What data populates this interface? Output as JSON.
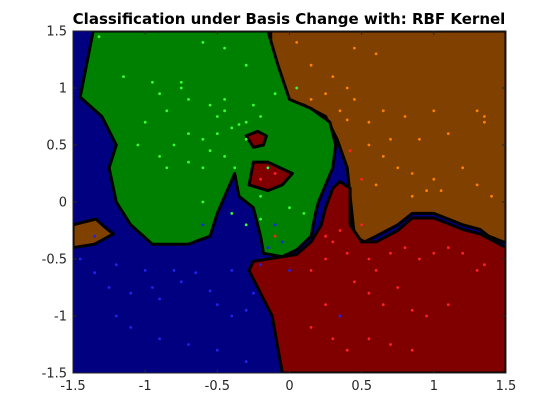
{
  "chart_data": {
    "type": "scatter",
    "title": "Classification under Basis Change with: RBF Kernel",
    "xlabel": "",
    "ylabel": "",
    "xlim": [
      -1.5,
      1.5
    ],
    "ylim": [
      -1.5,
      1.5
    ],
    "x_ticks": [
      "-1.5",
      "-1",
      "-0.5",
      "0",
      "0.5",
      "1",
      "1.5"
    ],
    "y_ticks": [
      "-1.5",
      "-1",
      "-0.5",
      "0",
      "0.5",
      "1",
      "1.5"
    ],
    "grid": false,
    "colors": {
      "class_green": "#008000",
      "class_blue": "#000080",
      "class_red": "#800000",
      "class_orange": "#804000",
      "boundary": "#000000",
      "point_green": "#33ff33",
      "point_blue": "#2222ee",
      "point_red": "#ff2222",
      "point_orange": "#ff8000"
    },
    "regions": [
      {
        "class": "orange",
        "polygon": [
          [
            -0.13,
            1.5
          ],
          [
            1.5,
            1.5
          ],
          [
            1.5,
            -0.36
          ],
          [
            1.38,
            -0.3
          ],
          [
            1.32,
            -0.24
          ],
          [
            1.2,
            -0.2
          ],
          [
            1.0,
            -0.1
          ],
          [
            0.85,
            -0.1
          ],
          [
            0.75,
            -0.2
          ],
          [
            0.6,
            -0.3
          ],
          [
            0.52,
            -0.35
          ],
          [
            0.45,
            -0.3
          ],
          [
            0.42,
            0.05
          ],
          [
            0.4,
            0.3
          ],
          [
            0.33,
            0.55
          ],
          [
            0.25,
            0.75
          ],
          [
            0.1,
            0.85
          ],
          [
            0.0,
            0.88
          ],
          [
            -0.08,
            1.1
          ],
          [
            -0.13,
            1.35
          ]
        ]
      },
      {
        "class": "orange",
        "polygon": [
          [
            -1.5,
            -0.2
          ],
          [
            -1.34,
            -0.15
          ],
          [
            -1.28,
            -0.22
          ],
          [
            -1.22,
            -0.28
          ],
          [
            -1.35,
            -0.37
          ],
          [
            -1.5,
            -0.4
          ]
        ]
      },
      {
        "class": "green",
        "polygon": [
          [
            -1.36,
            1.5
          ],
          [
            -0.15,
            1.5
          ],
          [
            -0.08,
            1.2
          ],
          [
            0.0,
            0.9
          ],
          [
            0.15,
            0.82
          ],
          [
            0.28,
            0.7
          ],
          [
            0.32,
            0.5
          ],
          [
            0.3,
            0.3
          ],
          [
            0.25,
            0.15
          ],
          [
            0.2,
            0.0
          ],
          [
            0.18,
            -0.1
          ],
          [
            0.15,
            -0.3
          ],
          [
            0.05,
            -0.42
          ],
          [
            -0.05,
            -0.48
          ],
          [
            -0.18,
            -0.45
          ],
          [
            -0.2,
            -0.3
          ],
          [
            -0.25,
            -0.05
          ],
          [
            -0.35,
            0.05
          ],
          [
            -0.38,
            0.25
          ],
          [
            -0.5,
            -0.1
          ],
          [
            -0.55,
            -0.3
          ],
          [
            -0.7,
            -0.37
          ],
          [
            -0.95,
            -0.37
          ],
          [
            -1.1,
            -0.2
          ],
          [
            -1.2,
            0.0
          ],
          [
            -1.25,
            0.3
          ],
          [
            -1.2,
            0.5
          ],
          [
            -1.3,
            0.75
          ],
          [
            -1.45,
            0.92
          ]
        ]
      },
      {
        "class": "red",
        "polygon": [
          [
            -0.25,
            0.35
          ],
          [
            -0.15,
            0.35
          ],
          [
            0.02,
            0.25
          ],
          [
            -0.05,
            0.15
          ],
          [
            -0.15,
            0.1
          ],
          [
            -0.28,
            0.15
          ]
        ]
      },
      {
        "class": "red",
        "polygon": [
          [
            0.35,
            0.18
          ],
          [
            0.42,
            0.12
          ],
          [
            0.42,
            -0.2
          ],
          [
            0.5,
            -0.35
          ],
          [
            0.6,
            -0.35
          ],
          [
            0.75,
            -0.25
          ],
          [
            0.85,
            -0.14
          ],
          [
            1.0,
            -0.14
          ],
          [
            1.2,
            -0.24
          ],
          [
            1.32,
            -0.28
          ],
          [
            1.5,
            -0.4
          ],
          [
            1.5,
            -1.5
          ],
          [
            -0.05,
            -1.5
          ],
          [
            -0.12,
            -1.0
          ],
          [
            -0.22,
            -0.75
          ],
          [
            -0.28,
            -0.6
          ],
          [
            -0.25,
            -0.52
          ],
          [
            -0.15,
            -0.5
          ],
          [
            0.05,
            -0.46
          ],
          [
            0.15,
            -0.35
          ],
          [
            0.22,
            -0.2
          ],
          [
            0.25,
            -0.05
          ],
          [
            0.3,
            0.12
          ]
        ]
      },
      {
        "class": "red",
        "polygon": [
          [
            -0.3,
            0.58
          ],
          [
            -0.22,
            0.62
          ],
          [
            -0.16,
            0.58
          ],
          [
            -0.18,
            0.5
          ],
          [
            -0.25,
            0.48
          ]
        ]
      }
    ],
    "series": [
      {
        "class": "green",
        "points": [
          [
            -1.32,
            1.45
          ],
          [
            -0.6,
            1.4
          ],
          [
            -0.45,
            1.35
          ],
          [
            -0.3,
            1.2
          ],
          [
            -1.15,
            1.1
          ],
          [
            -0.95,
            1.05
          ],
          [
            -0.75,
            1.0
          ],
          [
            -0.7,
            0.9
          ],
          [
            -0.55,
            0.85
          ],
          [
            -0.45,
            0.8
          ],
          [
            -0.5,
            0.75
          ],
          [
            -0.3,
            0.7
          ],
          [
            -0.35,
            0.68
          ],
          [
            -0.4,
            0.65
          ],
          [
            -0.5,
            0.6
          ],
          [
            -0.6,
            0.55
          ],
          [
            -0.7,
            0.6
          ],
          [
            -0.8,
            0.5
          ],
          [
            -1.0,
            0.7
          ],
          [
            -1.05,
            0.5
          ],
          [
            -0.9,
            0.4
          ],
          [
            -0.85,
            0.3
          ],
          [
            -0.7,
            0.35
          ],
          [
            -0.55,
            0.45
          ],
          [
            -0.45,
            0.4
          ],
          [
            -0.38,
            0.3
          ],
          [
            -0.6,
            0.3
          ],
          [
            -0.3,
            0.55
          ],
          [
            -0.2,
            0.75
          ],
          [
            -0.1,
            0.95
          ],
          [
            0.05,
            1.0
          ],
          [
            -0.45,
            0.9
          ],
          [
            -0.6,
            0.0
          ],
          [
            -0.4,
            -0.1
          ],
          [
            -0.3,
            -0.2
          ],
          [
            -0.2,
            -0.15
          ],
          [
            -0.15,
            0.3
          ],
          [
            0.0,
            -0.05
          ],
          [
            0.1,
            -0.1
          ],
          [
            -0.2,
            0.05
          ],
          [
            -0.75,
            1.05
          ],
          [
            -0.9,
            0.95
          ],
          [
            -0.85,
            0.8
          ],
          [
            -0.25,
            0.85
          ]
        ]
      },
      {
        "class": "blue",
        "points": [
          [
            -1.45,
            -0.5
          ],
          [
            -1.35,
            -0.62
          ],
          [
            -1.2,
            -0.55
          ],
          [
            -1.25,
            -0.75
          ],
          [
            -1.1,
            -0.8
          ],
          [
            -1.0,
            -0.6
          ],
          [
            -0.95,
            -0.75
          ],
          [
            -0.9,
            -0.85
          ],
          [
            -0.8,
            -0.6
          ],
          [
            -0.75,
            -0.7
          ],
          [
            -0.65,
            -0.62
          ],
          [
            -0.55,
            -0.78
          ],
          [
            -0.5,
            -0.9
          ],
          [
            -0.4,
            -1.0
          ],
          [
            -0.3,
            -0.95
          ],
          [
            -0.25,
            -0.8
          ],
          [
            -0.4,
            -0.6
          ],
          [
            -0.2,
            -0.55
          ],
          [
            -0.15,
            -0.4
          ],
          [
            -0.05,
            -0.35
          ],
          [
            0.0,
            -0.6
          ],
          [
            -0.1,
            -0.2
          ],
          [
            -1.2,
            -1.0
          ],
          [
            -1.1,
            -1.1
          ],
          [
            -0.9,
            -1.2
          ],
          [
            -0.7,
            -1.25
          ],
          [
            -0.5,
            -1.3
          ],
          [
            -0.3,
            -1.4
          ],
          [
            -1.35,
            -0.3
          ],
          [
            -0.6,
            -0.2
          ],
          [
            0.35,
            -1.0
          ]
        ]
      },
      {
        "class": "red",
        "points": [
          [
            0.3,
            -0.35
          ],
          [
            0.4,
            -0.45
          ],
          [
            0.55,
            -0.5
          ],
          [
            0.6,
            -0.6
          ],
          [
            0.7,
            -0.45
          ],
          [
            0.8,
            -0.4
          ],
          [
            0.9,
            -0.5
          ],
          [
            1.0,
            -0.45
          ],
          [
            1.1,
            -0.4
          ],
          [
            1.2,
            -0.45
          ],
          [
            1.3,
            -0.6
          ],
          [
            1.35,
            -0.55
          ],
          [
            0.45,
            -0.7
          ],
          [
            0.55,
            -0.8
          ],
          [
            0.65,
            -0.9
          ],
          [
            0.75,
            -0.75
          ],
          [
            0.85,
            -0.95
          ],
          [
            0.95,
            -1.0
          ],
          [
            1.1,
            -0.9
          ],
          [
            0.25,
            -0.9
          ],
          [
            0.15,
            -1.1
          ],
          [
            0.3,
            -1.2
          ],
          [
            0.4,
            -1.3
          ],
          [
            0.55,
            -1.2
          ],
          [
            0.7,
            -1.25
          ],
          [
            0.85,
            -1.3
          ],
          [
            0.15,
            -0.6
          ],
          [
            0.25,
            -0.5
          ],
          [
            0.35,
            -0.25
          ],
          [
            0.25,
            -0.3
          ],
          [
            0.5,
            -0.2
          ],
          [
            -0.1,
            -0.3
          ],
          [
            -0.2,
            0.2
          ],
          [
            -0.1,
            0.25
          ],
          [
            0.42,
            0.45
          ],
          [
            0.5,
            0.2
          ]
        ]
      },
      {
        "class": "orange",
        "points": [
          [
            0.05,
            1.4
          ],
          [
            0.45,
            1.35
          ],
          [
            0.6,
            1.3
          ],
          [
            0.3,
            1.1
          ],
          [
            0.4,
            1.0
          ],
          [
            0.45,
            0.9
          ],
          [
            0.25,
            0.95
          ],
          [
            0.15,
            0.9
          ],
          [
            0.35,
            0.8
          ],
          [
            0.4,
            0.72
          ],
          [
            0.55,
            0.7
          ],
          [
            0.65,
            0.8
          ],
          [
            0.8,
            0.75
          ],
          [
            1.0,
            0.8
          ],
          [
            1.3,
            0.8
          ],
          [
            1.35,
            0.75
          ],
          [
            1.1,
            0.6
          ],
          [
            0.9,
            0.55
          ],
          [
            0.65,
            0.4
          ],
          [
            0.75,
            0.3
          ],
          [
            0.85,
            0.25
          ],
          [
            0.6,
            0.15
          ],
          [
            1.0,
            0.2
          ],
          [
            1.05,
            0.1
          ],
          [
            0.95,
            0.1
          ],
          [
            1.2,
            0.3
          ],
          [
            1.3,
            0.15
          ],
          [
            1.4,
            0.05
          ],
          [
            0.55,
            0.5
          ],
          [
            0.7,
            0.55
          ],
          [
            1.35,
            0.7
          ],
          [
            0.85,
            0.05
          ],
          [
            0.15,
            1.2
          ]
        ]
      }
    ]
  }
}
